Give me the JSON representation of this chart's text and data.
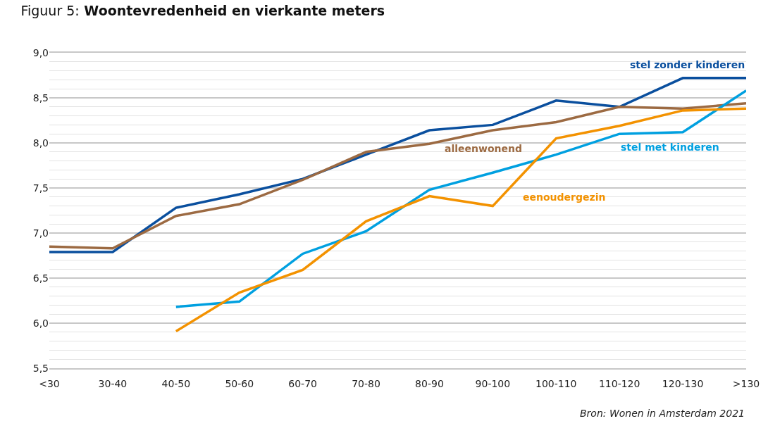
{
  "chart_data": {
    "type": "line",
    "title": "Figuur 5: Woontevredenheid en vierkante meters",
    "categories": [
      "<30",
      "30-40",
      "40-50",
      "50-60",
      "60-70",
      "70-80",
      "80-90",
      "90-100",
      "100-110",
      "110-120",
      "120-130",
      ">130"
    ],
    "series": [
      {
        "name": "stel zonder kinderen",
        "color": "#0a4f9e",
        "values": [
          6.79,
          6.79,
          7.28,
          7.43,
          7.6,
          7.87,
          8.14,
          8.2,
          8.47,
          8.4,
          8.72,
          8.72
        ]
      },
      {
        "name": "alleenwonend",
        "color": "#9c6a42",
        "values": [
          6.85,
          6.83,
          7.19,
          7.32,
          7.59,
          7.9,
          7.99,
          8.14,
          8.23,
          8.4,
          8.38,
          8.44
        ]
      },
      {
        "name": "stel met kinderen",
        "color": "#00a0e0",
        "values": [
          null,
          null,
          6.18,
          6.24,
          6.77,
          7.02,
          7.48,
          7.67,
          7.87,
          8.1,
          8.12,
          8.58
        ]
      },
      {
        "name": "eenoudergezin",
        "color": "#f39200",
        "values": [
          null,
          null,
          5.91,
          6.34,
          6.59,
          7.13,
          7.41,
          7.3,
          8.05,
          8.19,
          8.36,
          8.38
        ]
      }
    ],
    "ylim": [
      5.5,
      9.0
    ],
    "yticks": [
      {
        "value": 5.5,
        "label": "5,5"
      },
      {
        "value": 6.0,
        "label": "6,0"
      },
      {
        "value": 6.5,
        "label": "6,5"
      },
      {
        "value": 7.0,
        "label": "7,0"
      },
      {
        "value": 7.5,
        "label": "7,5"
      },
      {
        "value": 8.0,
        "label": "8,0"
      },
      {
        "value": 8.5,
        "label": "8,5"
      },
      {
        "value": 9.0,
        "label": "9,0"
      }
    ],
    "grid": "y",
    "legend": false,
    "line_style": "solid",
    "marker": "none",
    "annotations": [
      "Bron: Wonen in Amsterdam 2021"
    ]
  }
}
